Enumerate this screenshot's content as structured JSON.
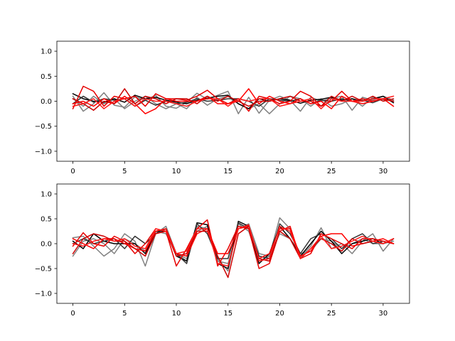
{
  "chart_data": [
    {
      "type": "line",
      "title": "",
      "xlabel": "",
      "ylabel": "",
      "xlim": [
        -1.55,
        32.55
      ],
      "ylim": [
        -1.2,
        1.2
      ],
      "xticks": [
        0,
        5,
        10,
        15,
        20,
        25,
        30
      ],
      "yticks": [
        -1.0,
        -0.5,
        0.0,
        0.5,
        1.0
      ],
      "xtick_labels": [
        "0",
        "5",
        "10",
        "15",
        "20",
        "25",
        "30"
      ],
      "ytick_labels": [
        "−1.0",
        "−0.5",
        "0.0",
        "0.5",
        "1.0"
      ],
      "grid": false,
      "x": [
        0,
        1,
        2,
        3,
        4,
        5,
        6,
        7,
        8,
        9,
        10,
        11,
        12,
        13,
        14,
        15,
        16,
        17,
        18,
        19,
        20,
        21,
        22,
        23,
        24,
        25,
        26,
        27,
        28,
        29,
        30,
        31
      ],
      "series": [
        {
          "color": "#808080",
          "values": [
            0.1,
            -0.2,
            -0.05,
            0.17,
            -0.08,
            -0.12,
            0.09,
            0.02,
            0.12,
            -0.1,
            -0.14,
            -0.02,
            0.16,
            0.04,
            0.12,
            0.2,
            -0.25,
            0.08,
            -0.24,
            0.02,
            0.1,
            0.02,
            -0.2,
            0.08,
            0.0,
            0.06,
            0.1,
            -0.18,
            0.08,
            0.02,
            0.1,
            0.02
          ]
        },
        {
          "color": "#808080",
          "values": [
            0.05,
            -0.1,
            0.1,
            -0.05,
            0.05,
            -0.15,
            0.0,
            0.1,
            -0.05,
            -0.15,
            -0.05,
            -0.15,
            0.08,
            -0.08,
            0.05,
            0.1,
            -0.05,
            -0.15,
            -0.05,
            -0.25,
            -0.05,
            0.1,
            0.05,
            -0.1,
            0.05,
            -0.1,
            -0.05,
            0.05,
            -0.1,
            0.08,
            0.03,
            0.0
          ]
        },
        {
          "color": "#000000",
          "values": [
            0.15,
            0.05,
            0.0,
            -0.02,
            0.05,
            -0.02,
            0.12,
            0.05,
            0.08,
            0.02,
            -0.02,
            -0.05,
            0.02,
            0.06,
            0.1,
            0.12,
            -0.05,
            -0.15,
            0.05,
            0.0,
            0.05,
            0.02,
            -0.04,
            0.02,
            0.04,
            0.08,
            0.02,
            0.05,
            0.0,
            0.05,
            0.1,
            -0.03
          ]
        },
        {
          "color": "#333333",
          "values": [
            -0.05,
            0.1,
            -0.02,
            0.05,
            0.02,
            0.05,
            -0.1,
            0.02,
            -0.08,
            0.0,
            -0.05,
            -0.02,
            0.05,
            0.0,
            0.02,
            0.05,
            0.05,
            0.0,
            -0.1,
            0.05,
            0.02,
            0.0,
            0.05,
            -0.05,
            0.02,
            0.0,
            0.05,
            0.0,
            0.02,
            -0.03,
            0.05,
            0.0
          ]
        },
        {
          "color": "#e60000",
          "values": [
            -0.15,
            0.3,
            0.2,
            -0.1,
            0.1,
            0.05,
            0.1,
            -0.1,
            0.15,
            0.05,
            0.05,
            0.02,
            0.1,
            0.22,
            0.05,
            -0.05,
            0.05,
            -0.2,
            0.1,
            0.05,
            -0.05,
            0.0,
            0.2,
            0.1,
            -0.1,
            0.0,
            0.2,
            0.0,
            0.05,
            0.0,
            0.05,
            0.0
          ]
        },
        {
          "color": "#ff0000",
          "values": [
            -0.05,
            0.0,
            -0.1,
            0.05,
            -0.05,
            0.1,
            -0.05,
            -0.25,
            -0.15,
            0.05,
            0.0,
            0.0,
            0.0,
            0.1,
            -0.05,
            -0.05,
            0.0,
            0.25,
            -0.05,
            0.1,
            0.0,
            -0.05,
            0.05,
            -0.05,
            0.0,
            -0.15,
            0.1,
            0.0,
            -0.05,
            0.0,
            0.05,
            -0.1
          ]
        },
        {
          "color": "#cc0000",
          "values": [
            0.05,
            -0.05,
            -0.18,
            0.0,
            -0.05,
            0.25,
            -0.05,
            0.1,
            0.05,
            -0.05,
            0.05,
            0.05,
            -0.05,
            0.1,
            0.0,
            0.1,
            0.0,
            -0.1,
            0.0,
            0.0,
            0.05,
            0.1,
            0.0,
            0.0,
            -0.1,
            0.1,
            0.0,
            0.1,
            0.0,
            0.1,
            0.0,
            0.05
          ]
        },
        {
          "color": "#ff1a1a",
          "values": [
            -0.1,
            -0.05,
            0.05,
            -0.15,
            0.0,
            0.05,
            -0.1,
            0.05,
            0.0,
            0.0,
            -0.05,
            -0.1,
            0.0,
            0.05,
            0.05,
            -0.1,
            0.05,
            0.0,
            0.05,
            0.05,
            -0.1,
            -0.05,
            0.0,
            0.05,
            -0.15,
            0.05,
            0.0,
            0.0,
            0.0,
            0.05,
            0.05,
            0.1
          ]
        }
      ]
    },
    {
      "type": "line",
      "title": "",
      "xlabel": "",
      "ylabel": "",
      "xlim": [
        -1.55,
        32.55
      ],
      "ylim": [
        -1.2,
        1.2
      ],
      "xticks": [
        0,
        5,
        10,
        15,
        20,
        25,
        30
      ],
      "yticks": [
        -1.0,
        -0.5,
        0.0,
        0.5,
        1.0
      ],
      "xtick_labels": [
        "0",
        "5",
        "10",
        "15",
        "20",
        "25",
        "30"
      ],
      "ytick_labels": [
        "−1.0",
        "−0.5",
        "0.0",
        "0.5",
        "1.0"
      ],
      "grid": false,
      "x": [
        0,
        1,
        2,
        3,
        4,
        5,
        6,
        7,
        8,
        9,
        10,
        11,
        12,
        13,
        14,
        15,
        16,
        17,
        18,
        19,
        20,
        21,
        22,
        23,
        24,
        25,
        26,
        27,
        28,
        29,
        30,
        31
      ],
      "series": [
        {
          "color": "#808080",
          "values": [
            0.12,
            0.15,
            -0.05,
            -0.25,
            -0.1,
            0.2,
            0.05,
            -0.45,
            0.2,
            0.35,
            -0.2,
            -0.35,
            0.35,
            0.3,
            -0.3,
            -0.55,
            0.4,
            0.25,
            -0.35,
            -0.25,
            0.52,
            0.3,
            -0.28,
            -0.05,
            0.32,
            -0.1,
            0.0,
            -0.2,
            0.05,
            0.2,
            -0.15,
            0.1
          ]
        },
        {
          "color": "#808080",
          "values": [
            -0.25,
            0.05,
            0.1,
            0.0,
            -0.2,
            0.1,
            0.0,
            -0.15,
            0.25,
            0.2,
            -0.2,
            -0.3,
            0.25,
            0.35,
            -0.35,
            -0.4,
            0.3,
            0.4,
            -0.2,
            -0.25,
            0.2,
            0.1,
            -0.2,
            -0.15,
            0.1,
            0.05,
            -0.1,
            0.0,
            0.1,
            0.0,
            0.0,
            0.05
          ]
        },
        {
          "color": "#000000",
          "values": [
            0.05,
            -0.1,
            0.2,
            0.05,
            0.0,
            0.0,
            0.0,
            -0.2,
            0.25,
            0.25,
            -0.25,
            -0.35,
            0.42,
            0.38,
            -0.4,
            -0.5,
            0.45,
            0.35,
            -0.4,
            -0.2,
            0.35,
            0.1,
            -0.25,
            0.0,
            0.25,
            0.05,
            -0.2,
            0.0,
            0.05,
            0.1,
            0.0,
            0.1
          ]
        },
        {
          "color": "#333333",
          "values": [
            0.0,
            0.1,
            0.0,
            0.05,
            0.1,
            -0.1,
            0.15,
            0.0,
            0.2,
            0.3,
            -0.2,
            -0.4,
            0.4,
            0.2,
            -0.3,
            -0.3,
            0.42,
            0.3,
            -0.25,
            -0.3,
            0.4,
            0.2,
            -0.2,
            0.1,
            0.2,
            0.1,
            -0.1,
            0.1,
            0.2,
            0.0,
            0.05,
            0.0
          ]
        },
        {
          "color": "#e60000",
          "values": [
            -0.05,
            0.22,
            0.0,
            -0.05,
            0.15,
            0.05,
            -0.2,
            0.0,
            0.3,
            0.25,
            -0.45,
            -0.1,
            0.3,
            0.48,
            -0.45,
            -0.1,
            0.35,
            0.3,
            -0.5,
            -0.4,
            0.25,
            0.35,
            -0.3,
            -0.2,
            0.2,
            0.1,
            0.0,
            -0.1,
            0.1,
            0.1,
            0.05,
            0.0
          ]
        },
        {
          "color": "#ff0000",
          "values": [
            0.1,
            0.0,
            -0.1,
            0.1,
            0.1,
            0.0,
            -0.1,
            -0.15,
            0.25,
            0.3,
            -0.2,
            -0.25,
            0.2,
            0.3,
            -0.2,
            -0.2,
            0.3,
            0.35,
            -0.3,
            -0.2,
            0.3,
            0.3,
            -0.25,
            -0.15,
            0.15,
            0.2,
            0.2,
            -0.05,
            0.0,
            0.05,
            0.1,
            0.0
          ]
        },
        {
          "color": "#cc0000",
          "values": [
            -0.2,
            0.1,
            0.2,
            0.15,
            0.05,
            0.05,
            -0.1,
            -0.25,
            0.2,
            0.25,
            -0.25,
            -0.2,
            0.25,
            0.25,
            -0.25,
            -0.68,
            0.2,
            0.35,
            -0.3,
            -0.35,
            0.25,
            0.1,
            -0.3,
            -0.1,
            0.1,
            0.0,
            -0.15,
            0.1,
            0.0,
            0.05,
            0.0,
            0.1
          ]
        },
        {
          "color": "#ff1a1a",
          "values": [
            0.0,
            -0.05,
            0.05,
            0.1,
            0.05,
            0.1,
            -0.05,
            -0.1,
            0.3,
            0.25,
            -0.2,
            -0.15,
            0.3,
            0.3,
            -0.4,
            -0.45,
            0.3,
            0.38,
            -0.35,
            -0.3,
            0.35,
            0.25,
            -0.3,
            -0.1,
            0.15,
            -0.1,
            -0.05,
            0.05,
            0.15,
            0.05,
            0.0,
            0.1
          ]
        }
      ]
    }
  ]
}
